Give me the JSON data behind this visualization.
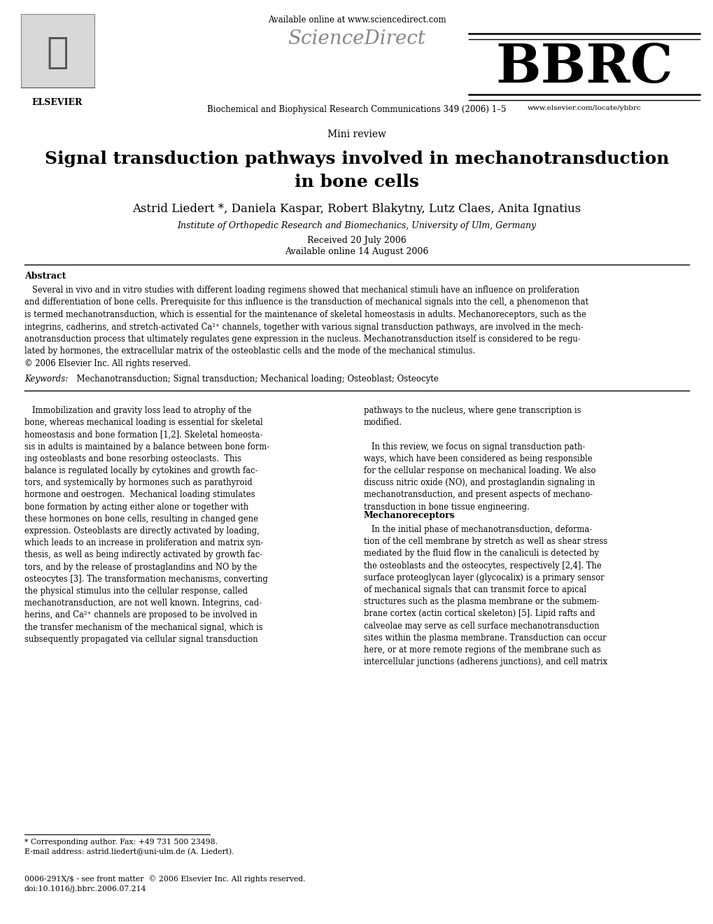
{
  "bg_color": "#ffffff",
  "elsevier_text": "ELSEVIER",
  "available_online": "Available online at www.sciencedirect.com",
  "sciencedirect": "ScienceDirect",
  "bbrc": "BBRC",
  "journal_info": "Biochemical and Biophysical Research Communications 349 (2006) 1–5",
  "website": "www.elsevier.com/locate/ybbrc",
  "mini_review": "Mini review",
  "title_line1": "Signal transduction pathways involved in mechanotransduction",
  "title_line2": "in bone cells",
  "authors": "Astrid Liedert *, Daniela Kaspar, Robert Blakytny, Lutz Claes, Anita Ignatius",
  "affiliation": "Institute of Orthopedic Research and Biomechanics, University of Ulm, Germany",
  "received": "Received 20 July 2006",
  "available": "Available online 14 August 2006",
  "abstract_label": "Abstract",
  "abstract_text": "   Several in vivo and in vitro studies with different loading regimens showed that mechanical stimuli have an influence on proliferation\nand differentiation of bone cells. Prerequisite for this influence is the transduction of mechanical signals into the cell, a phenomenon that\nis termed mechanotransduction, which is essential for the maintenance of skeletal homeostasis in adults. Mechanoreceptors, such as the\nintegrins, cadherins, and stretch-activated Ca²⁺ channels, together with various signal transduction pathways, are involved in the mech-\nanotransduction process that ultimately regulates gene expression in the nucleus. Mechanotransduction itself is considered to be regu-\nlated by hormones, the extracellular matrix of the osteoblastic cells and the mode of the mechanical stimulus.\n© 2006 Elsevier Inc. All rights reserved.",
  "keywords_label": "Keywords:",
  "keywords_text": "  Mechanotransduction; Signal transduction; Mechanical loading; Osteoblast; Osteocyte",
  "col1_para1": "   Immobilization and gravity loss lead to atrophy of the\nbone, whereas mechanical loading is essential for skeletal\nhomeostasis and bone formation [1,2]. Skeletal homeosta-\nsis in adults is maintained by a balance between bone form-\ning osteoblasts and bone resorbing osteoclasts.  This\nbalance is regulated locally by cytokines and growth fac-\ntors, and systemically by hormones such as parathyroid\nhormone and oestrogen.  Mechanical loading stimulates\nbone formation by acting either alone or together with\nthese hormones on bone cells, resulting in changed gene\nexpression. Osteoblasts are directly activated by loading,\nwhich leads to an increase in proliferation and matrix syn-\nthesis, as well as being indirectly activated by growth fac-\ntors, and by the release of prostaglandins and NO by the\nosteocytes [3]. The transformation mechanisms, converting\nthe physical stimulus into the cellular response, called\nmechanotransduction, are not well known. Integrins, cad-\nherins, and Ca²⁺ channels are proposed to be involved in\nthe transfer mechanism of the mechanical signal, which is\nsubsequently propagated via cellular signal transduction",
  "col2_para1": "pathways to the nucleus, where gene transcription is\nmodified.\n\n   In this review, we focus on signal transduction path-\nways, which have been considered as being responsible\nfor the cellular response on mechanical loading. We also\ndiscuss nitric oxide (NO), and prostaglandin signaling in\nmechanotransduction, and present aspects of mechano-\ntransduction in bone tissue engineering.",
  "col2_section": "Mechanoreceptors",
  "col2_para2": "   In the initial phase of mechanotransduction, deforma-\ntion of the cell membrane by stretch as well as shear stress\nmediated by the fluid flow in the canaliculi is detected by\nthe osteoblasts and the osteocytes, respectively [2,4]. The\nsurface proteoglycan layer (glycocalix) is a primary sensor\nof mechanical signals that can transmit force to apical\nstructures such as the plasma membrane or the submem-\nbrane cortex (actin cortical skeleton) [5]. Lipid rafts and\ncalveolae may serve as cell surface mechanotransduction\nsites within the plasma membrane. Transduction can occur\nhere, or at more remote regions of the membrane such as\nintercellular junctions (adherens junctions), and cell matrix",
  "footnote_star": "* Corresponding author. Fax: +49 731 500 23498.",
  "footnote_email": "E-mail address: astrid.liedert@uni-ulm.de (A. Liedert).",
  "footer_doi": "0006-291X/$ - see front matter  © 2006 Elsevier Inc. All rights reserved.\ndoi:10.1016/j.bbrc.2006.07.214",
  "fig_width": 10.2,
  "fig_height": 13.2,
  "dpi": 100
}
